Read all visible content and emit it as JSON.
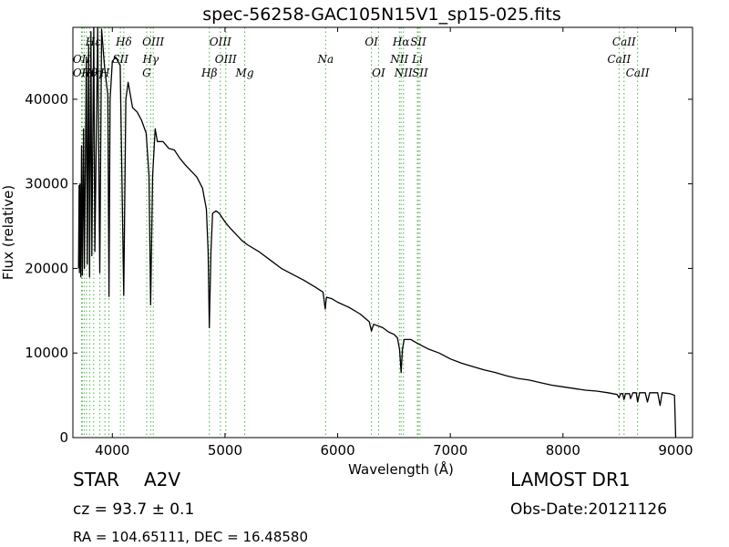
{
  "chart_data": {
    "type": "line",
    "title": "spec-56258-GAC105N15V1_sp15-025.fits",
    "xlabel": "Wavelength (Å)",
    "ylabel": "Flux (relative)",
    "xlim": [
      3650,
      9150
    ],
    "ylim": [
      0,
      48500
    ],
    "xticks": [
      4000,
      5000,
      6000,
      7000,
      8000,
      9000
    ],
    "yticks": [
      0,
      10000,
      20000,
      30000,
      40000
    ],
    "grid": false,
    "series": [
      {
        "color": "#000000",
        "points": [
          [
            3700,
            20000
          ],
          [
            3705,
            29800
          ],
          [
            3708,
            19500
          ],
          [
            3713,
            30000
          ],
          [
            3720,
            19000
          ],
          [
            3727,
            34500
          ],
          [
            3734,
            19200
          ],
          [
            3745,
            36500
          ],
          [
            3752,
            20000
          ],
          [
            3770,
            45000
          ],
          [
            3778,
            20500
          ],
          [
            3790,
            46500
          ],
          [
            3798,
            19000
          ],
          [
            3810,
            48000
          ],
          [
            3818,
            21500
          ],
          [
            3835,
            48500
          ],
          [
            3845,
            22000
          ],
          [
            3870,
            48500
          ],
          [
            3889,
            19500
          ],
          [
            3905,
            48300
          ],
          [
            3930,
            44000
          ],
          [
            3960,
            40500
          ],
          [
            3970,
            16700
          ],
          [
            3980,
            40000
          ],
          [
            4000,
            44500
          ],
          [
            4030,
            45000
          ],
          [
            4070,
            44000
          ],
          [
            4101,
            16800
          ],
          [
            4120,
            40000
          ],
          [
            4140,
            42000
          ],
          [
            4180,
            39000
          ],
          [
            4220,
            38500
          ],
          [
            4260,
            37500
          ],
          [
            4300,
            36000
          ],
          [
            4325,
            31000
          ],
          [
            4340,
            15700
          ],
          [
            4358,
            31000
          ],
          [
            4380,
            36500
          ],
          [
            4400,
            35000
          ],
          [
            4450,
            35000
          ],
          [
            4500,
            34200
          ],
          [
            4550,
            34000
          ],
          [
            4600,
            33000
          ],
          [
            4650,
            32200
          ],
          [
            4700,
            31500
          ],
          [
            4750,
            30800
          ],
          [
            4800,
            29500
          ],
          [
            4835,
            27000
          ],
          [
            4850,
            22000
          ],
          [
            4861,
            13000
          ],
          [
            4875,
            22000
          ],
          [
            4890,
            26500
          ],
          [
            4920,
            26800
          ],
          [
            4950,
            26500
          ],
          [
            5000,
            25500
          ],
          [
            5050,
            24700
          ],
          [
            5100,
            24000
          ],
          [
            5150,
            23300
          ],
          [
            5200,
            22800
          ],
          [
            5300,
            22000
          ],
          [
            5400,
            21000
          ],
          [
            5500,
            20000
          ],
          [
            5600,
            19300
          ],
          [
            5700,
            18600
          ],
          [
            5800,
            17800
          ],
          [
            5870,
            17200
          ],
          [
            5890,
            15200
          ],
          [
            5900,
            16600
          ],
          [
            5950,
            16400
          ],
          [
            6000,
            16000
          ],
          [
            6100,
            15400
          ],
          [
            6200,
            14600
          ],
          [
            6280,
            13700
          ],
          [
            6300,
            12600
          ],
          [
            6320,
            13400
          ],
          [
            6400,
            13000
          ],
          [
            6450,
            12500
          ],
          [
            6500,
            12200
          ],
          [
            6530,
            11800
          ],
          [
            6550,
            10400
          ],
          [
            6563,
            7700
          ],
          [
            6575,
            10400
          ],
          [
            6590,
            11600
          ],
          [
            6650,
            11600
          ],
          [
            6700,
            11200
          ],
          [
            6800,
            10500
          ],
          [
            6900,
            10000
          ],
          [
            7000,
            9300
          ],
          [
            7100,
            8800
          ],
          [
            7200,
            8400
          ],
          [
            7300,
            8000
          ],
          [
            7400,
            7700
          ],
          [
            7500,
            7300
          ],
          [
            7600,
            7000
          ],
          [
            7700,
            6800
          ],
          [
            7800,
            6500
          ],
          [
            7900,
            6200
          ],
          [
            8000,
            6000
          ],
          [
            8100,
            5800
          ],
          [
            8200,
            5600
          ],
          [
            8300,
            5500
          ],
          [
            8400,
            5300
          ],
          [
            8480,
            5100
          ],
          [
            8498,
            4700
          ],
          [
            8510,
            5200
          ],
          [
            8530,
            5200
          ],
          [
            8542,
            4500
          ],
          [
            8555,
            5200
          ],
          [
            8590,
            5200
          ],
          [
            8600,
            4600
          ],
          [
            8620,
            5300
          ],
          [
            8650,
            5300
          ],
          [
            8662,
            4200
          ],
          [
            8680,
            5300
          ],
          [
            8730,
            5300
          ],
          [
            8750,
            4200
          ],
          [
            8770,
            5300
          ],
          [
            8840,
            5300
          ],
          [
            8862,
            3800
          ],
          [
            8880,
            5300
          ],
          [
            8950,
            5200
          ],
          [
            8990,
            5000
          ],
          [
            9000,
            0
          ]
        ]
      }
    ],
    "annotations": [
      {
        "label": "Hε",
        "x": 3830,
        "row": 0
      },
      {
        "label": "Hδ",
        "x": 4102,
        "row": 0
      },
      {
        "label": "OIII",
        "x": 4363,
        "row": 0
      },
      {
        "label": "OIII",
        "x": 4959,
        "row": 0
      },
      {
        "label": "OI",
        "x": 6300,
        "row": 0
      },
      {
        "label": "Hα",
        "x": 6563,
        "row": 0
      },
      {
        "label": "SII",
        "x": 6716,
        "row": 0
      },
      {
        "label": "CaII",
        "x": 8542,
        "row": 0
      },
      {
        "label": "OII",
        "x": 3727,
        "row": 1
      },
      {
        "label": "Hγ",
        "x": 4340,
        "row": 1
      },
      {
        "label": "SII",
        "x": 4072,
        "row": 1
      },
      {
        "label": "OIII",
        "x": 5007,
        "row": 1
      },
      {
        "label": "Na",
        "x": 5893,
        "row": 1
      },
      {
        "label": "NII",
        "x": 6548,
        "row": 1
      },
      {
        "label": "Li",
        "x": 6708,
        "row": 1
      },
      {
        "label": "CaII",
        "x": 8498,
        "row": 1
      },
      {
        "label": "OII",
        "x": 3727,
        "row": 2
      },
      {
        "label": "Hθ",
        "x": 3797,
        "row": 2
      },
      {
        "label": "Hη",
        "x": 3835,
        "row": 2
      },
      {
        "label": "H",
        "x": 3934,
        "row": 2
      },
      {
        "label": "G",
        "x": 4305,
        "row": 2
      },
      {
        "label": "Hβ",
        "x": 4861,
        "row": 2
      },
      {
        "label": "Mg",
        "x": 5175,
        "row": 2
      },
      {
        "label": "OI",
        "x": 6363,
        "row": 2
      },
      {
        "label": "NII",
        "x": 6584,
        "row": 2
      },
      {
        "label": "SII",
        "x": 6731,
        "row": 2
      },
      {
        "label": "CaII",
        "x": 8662,
        "row": 2
      }
    ],
    "marker_lines": [
      3727,
      3733,
      3750,
      3771,
      3798,
      3835,
      3889,
      3934,
      3970,
      4072,
      4102,
      4305,
      4340,
      4363,
      4861,
      4959,
      5007,
      5175,
      5893,
      6300,
      6363,
      6548,
      6563,
      6584,
      6708,
      6716,
      6731,
      8498,
      8542,
      8662
    ],
    "marker_color": "#4daf4a"
  },
  "info": {
    "object_type": "STAR",
    "subclass": "A2V",
    "survey": "LAMOST DR1",
    "redshift": "cz = 93.7 ± 0.1",
    "obs_date": "Obs-Date:20121126",
    "coords": "RA = 104.65111, DEC = 16.48580"
  }
}
